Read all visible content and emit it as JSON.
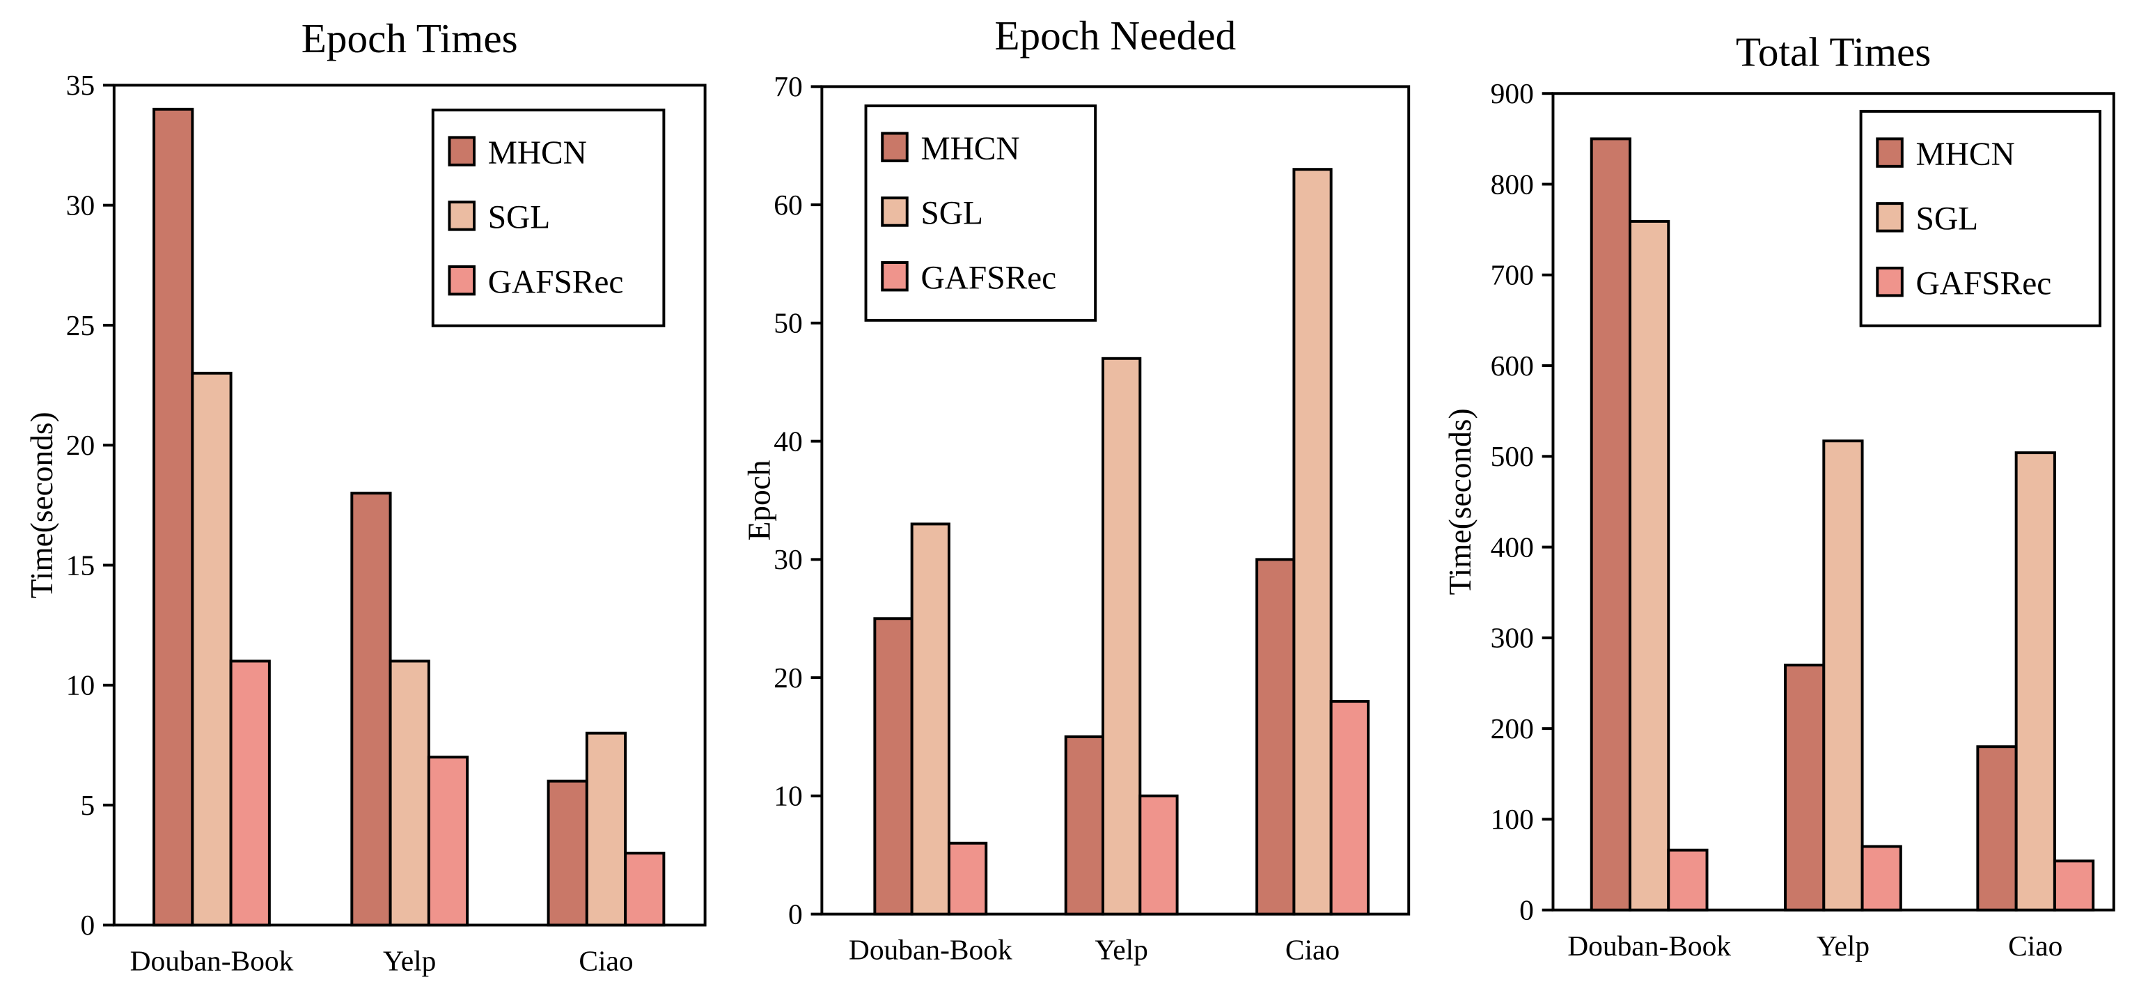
{
  "figure_title": "",
  "colors": {
    "MHCN": "#c97868",
    "SGL": "#ebbca2",
    "GAFSRec": "#ef948c",
    "stroke": "#000000"
  },
  "chart_data": [
    {
      "type": "bar",
      "title": "Epoch Times",
      "xlabel": "",
      "ylabel": "Time(seconds)",
      "categories": [
        "Douban-Book",
        "Yelp",
        "Ciao"
      ],
      "series": [
        {
          "name": "MHCN",
          "values": [
            34,
            18,
            6
          ]
        },
        {
          "name": "SGL",
          "values": [
            23,
            11,
            8
          ]
        },
        {
          "name": "GAFSRec",
          "values": [
            11,
            7,
            3
          ]
        }
      ],
      "ylim": [
        0,
        35
      ],
      "yticks": [
        0,
        5,
        10,
        15,
        20,
        25,
        30,
        35
      ],
      "legend": "top-right",
      "grid": false
    },
    {
      "type": "bar",
      "title": "Epoch Needed",
      "xlabel": "",
      "ylabel": "Epoch",
      "categories": [
        "Douban-Book",
        "Yelp",
        "Ciao"
      ],
      "series": [
        {
          "name": "MHCN",
          "values": [
            25,
            15,
            30
          ]
        },
        {
          "name": "SGL",
          "values": [
            33,
            47,
            63
          ]
        },
        {
          "name": "GAFSRec",
          "values": [
            6,
            10,
            18
          ]
        }
      ],
      "ylim": [
        0,
        70
      ],
      "yticks": [
        0,
        10,
        20,
        30,
        40,
        50,
        60,
        70
      ],
      "legend": "top-left",
      "grid": false
    },
    {
      "type": "bar",
      "title": "Total Times",
      "xlabel": "",
      "ylabel": "Time(seconds)",
      "categories": [
        "Douban-Book",
        "Yelp",
        "Ciao"
      ],
      "series": [
        {
          "name": "MHCN",
          "values": [
            850,
            270,
            180
          ]
        },
        {
          "name": "SGL",
          "values": [
            759,
            517,
            504
          ]
        },
        {
          "name": "GAFSRec",
          "values": [
            66,
            70,
            54
          ]
        }
      ],
      "ylim": [
        0,
        900
      ],
      "yticks": [
        0,
        100,
        200,
        300,
        400,
        500,
        600,
        700,
        800,
        900
      ],
      "legend": "top-right",
      "grid": false
    }
  ]
}
